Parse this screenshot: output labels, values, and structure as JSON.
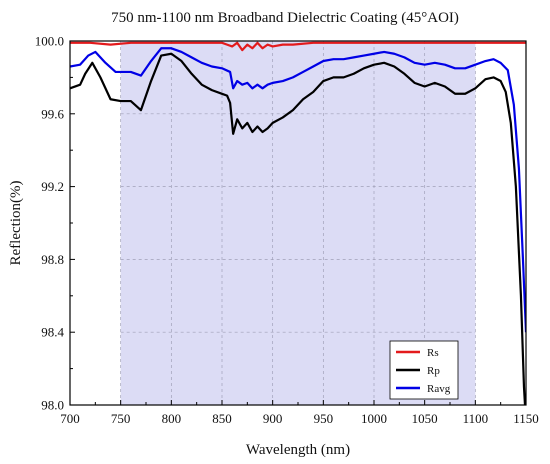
{
  "chart_data": {
    "type": "line",
    "title": "750 nm-1100 nm Broadband Dielectric Coating (45°AOI)",
    "xlabel": "Wavelength (nm)",
    "ylabel": "Reflection(%)",
    "xlim": [
      700,
      1150
    ],
    "ylim": [
      98.0,
      100.0
    ],
    "x_ticks": [
      "700",
      "750",
      "800",
      "850",
      "900",
      "950",
      "1000",
      "1050",
      "1100",
      "1150"
    ],
    "y_ticks": [
      "98.0",
      "98.4",
      "98.8",
      "99.2",
      "99.6",
      "100.0"
    ],
    "grid": "dashed vertical and horizontal lines inside shaded design band",
    "shaded_band": {
      "x_range": [
        750,
        1100
      ],
      "color": "#dcdcf5"
    },
    "legend": {
      "position": "bottom-right",
      "entries": [
        "Rs",
        "Rp",
        "Ravg"
      ]
    },
    "series": [
      {
        "name": "Rs",
        "color": "#e31a1c",
        "points": [
          [
            700,
            99.99
          ],
          [
            720,
            99.99
          ],
          [
            740,
            99.98
          ],
          [
            760,
            99.99
          ],
          [
            780,
            99.99
          ],
          [
            800,
            99.99
          ],
          [
            820,
            99.99
          ],
          [
            840,
            99.99
          ],
          [
            850,
            99.99
          ],
          [
            855,
            99.98
          ],
          [
            860,
            99.97
          ],
          [
            865,
            99.99
          ],
          [
            870,
            99.95
          ],
          [
            875,
            99.98
          ],
          [
            880,
            99.96
          ],
          [
            885,
            99.99
          ],
          [
            890,
            99.96
          ],
          [
            895,
            99.98
          ],
          [
            900,
            99.97
          ],
          [
            910,
            99.98
          ],
          [
            920,
            99.98
          ],
          [
            940,
            99.99
          ],
          [
            960,
            99.99
          ],
          [
            980,
            99.99
          ],
          [
            1000,
            99.99
          ],
          [
            1020,
            99.99
          ],
          [
            1040,
            99.99
          ],
          [
            1060,
            99.99
          ],
          [
            1080,
            99.99
          ],
          [
            1100,
            99.99
          ],
          [
            1120,
            99.99
          ],
          [
            1140,
            99.99
          ],
          [
            1150,
            99.99
          ]
        ]
      },
      {
        "name": "Rp",
        "color": "#000000",
        "points": [
          [
            700,
            99.74
          ],
          [
            710,
            99.76
          ],
          [
            715,
            99.82
          ],
          [
            722,
            99.88
          ],
          [
            730,
            99.8
          ],
          [
            740,
            99.68
          ],
          [
            750,
            99.67
          ],
          [
            760,
            99.67
          ],
          [
            770,
            99.62
          ],
          [
            780,
            99.78
          ],
          [
            790,
            99.92
          ],
          [
            800,
            99.93
          ],
          [
            810,
            99.89
          ],
          [
            820,
            99.82
          ],
          [
            830,
            99.76
          ],
          [
            840,
            99.73
          ],
          [
            850,
            99.71
          ],
          [
            855,
            99.7
          ],
          [
            858,
            99.66
          ],
          [
            861,
            99.49
          ],
          [
            865,
            99.57
          ],
          [
            870,
            99.52
          ],
          [
            875,
            99.55
          ],
          [
            880,
            99.5
          ],
          [
            885,
            99.53
          ],
          [
            890,
            99.5
          ],
          [
            895,
            99.52
          ],
          [
            900,
            99.55
          ],
          [
            910,
            99.58
          ],
          [
            920,
            99.62
          ],
          [
            930,
            99.68
          ],
          [
            940,
            99.72
          ],
          [
            950,
            99.78
          ],
          [
            960,
            99.8
          ],
          [
            970,
            99.8
          ],
          [
            980,
            99.82
          ],
          [
            990,
            99.85
          ],
          [
            1000,
            99.87
          ],
          [
            1010,
            99.88
          ],
          [
            1020,
            99.86
          ],
          [
            1030,
            99.82
          ],
          [
            1040,
            99.77
          ],
          [
            1050,
            99.75
          ],
          [
            1060,
            99.77
          ],
          [
            1070,
            99.75
          ],
          [
            1080,
            99.71
          ],
          [
            1090,
            99.71
          ],
          [
            1100,
            99.74
          ],
          [
            1110,
            99.79
          ],
          [
            1118,
            99.8
          ],
          [
            1125,
            99.78
          ],
          [
            1130,
            99.72
          ],
          [
            1135,
            99.55
          ],
          [
            1140,
            99.2
          ],
          [
            1145,
            98.6
          ],
          [
            1148,
            98.1
          ],
          [
            1149,
            98.0
          ]
        ]
      },
      {
        "name": "Ravg",
        "color": "#0000e6",
        "points": [
          [
            700,
            99.86
          ],
          [
            710,
            99.87
          ],
          [
            718,
            99.92
          ],
          [
            725,
            99.94
          ],
          [
            735,
            99.88
          ],
          [
            745,
            99.83
          ],
          [
            760,
            99.83
          ],
          [
            770,
            99.81
          ],
          [
            780,
            99.89
          ],
          [
            790,
            99.96
          ],
          [
            800,
            99.96
          ],
          [
            810,
            99.94
          ],
          [
            820,
            99.91
          ],
          [
            830,
            99.88
          ],
          [
            840,
            99.86
          ],
          [
            850,
            99.85
          ],
          [
            858,
            99.83
          ],
          [
            861,
            99.74
          ],
          [
            865,
            99.78
          ],
          [
            870,
            99.76
          ],
          [
            875,
            99.77
          ],
          [
            880,
            99.74
          ],
          [
            885,
            99.76
          ],
          [
            890,
            99.74
          ],
          [
            895,
            99.76
          ],
          [
            900,
            99.77
          ],
          [
            910,
            99.78
          ],
          [
            920,
            99.8
          ],
          [
            930,
            99.83
          ],
          [
            940,
            99.86
          ],
          [
            950,
            99.89
          ],
          [
            960,
            99.9
          ],
          [
            970,
            99.9
          ],
          [
            980,
            99.91
          ],
          [
            990,
            99.92
          ],
          [
            1000,
            99.93
          ],
          [
            1010,
            99.94
          ],
          [
            1020,
            99.93
          ],
          [
            1030,
            99.91
          ],
          [
            1040,
            99.88
          ],
          [
            1050,
            99.87
          ],
          [
            1060,
            99.88
          ],
          [
            1070,
            99.87
          ],
          [
            1080,
            99.85
          ],
          [
            1090,
            99.85
          ],
          [
            1100,
            99.87
          ],
          [
            1110,
            99.89
          ],
          [
            1118,
            99.9
          ],
          [
            1125,
            99.88
          ],
          [
            1132,
            99.84
          ],
          [
            1138,
            99.65
          ],
          [
            1143,
            99.3
          ],
          [
            1147,
            98.8
          ],
          [
            1150,
            98.4
          ]
        ]
      }
    ]
  }
}
